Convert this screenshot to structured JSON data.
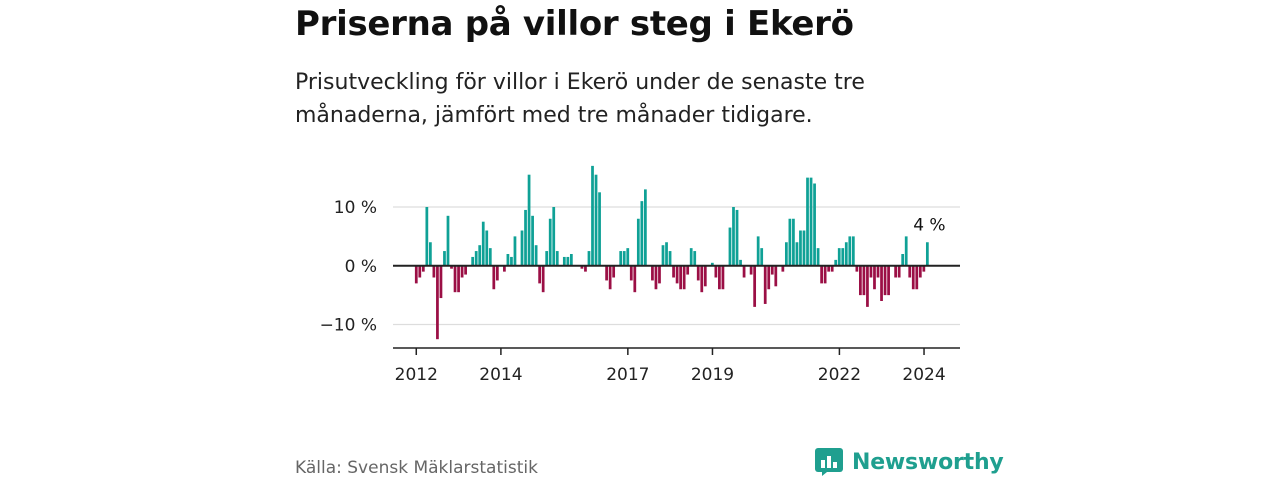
{
  "header": {
    "title": "Priserna på villor steg i Ekerö",
    "subtitle": "Prisutveckling för villor i Ekerö under de senaste tre månaderna, jämfört med tre månader tidigare."
  },
  "footer": {
    "source": "Källa: Svensk Mäklarstatistik",
    "brand": "Newsworthy"
  },
  "colors": {
    "positive": "#0fa196",
    "negative": "#9b0f45",
    "grid": "#dddddd",
    "zero": "#222222",
    "brand": "#1f9f8f"
  },
  "chart_data": {
    "type": "bar",
    "title": "Priserna på villor steg i Ekerö",
    "xlabel": "",
    "ylabel": "",
    "unit": "%",
    "ylim": [
      -14,
      18
    ],
    "yticks": [
      {
        "value": 10,
        "label": "10 %"
      },
      {
        "value": 0,
        "label": "0 %"
      },
      {
        "value": -10,
        "label": "−10 %"
      }
    ],
    "xticks": [
      {
        "value": 2012,
        "label": "2012"
      },
      {
        "value": 2014,
        "label": "2014"
      },
      {
        "value": 2017,
        "label": "2017"
      },
      {
        "value": 2019,
        "label": "2019"
      },
      {
        "value": 2022,
        "label": "2022"
      },
      {
        "value": 2024,
        "label": "2024"
      }
    ],
    "xlim": [
      2011.45,
      2024.85
    ],
    "annotation": "4 %",
    "x_start": 2012.0,
    "x_step": 0.0833,
    "values": [
      -3,
      -2,
      -1,
      10,
      4,
      -2,
      -12.5,
      -5.5,
      2.5,
      8.5,
      -0.5,
      -4.5,
      -4.5,
      -2,
      -1.5,
      0,
      1.5,
      2.5,
      3.5,
      7.5,
      6,
      3,
      -4,
      -2.5,
      0,
      -1,
      2,
      1.5,
      5,
      0,
      6,
      9.5,
      15.5,
      8.5,
      3.5,
      -3,
      -4.5,
      2.5,
      8,
      10,
      2.5,
      0,
      1.5,
      1.5,
      2,
      0,
      0,
      -0.5,
      -1,
      2.5,
      17,
      15.5,
      12.5,
      0,
      -2.5,
      -4,
      -2,
      0,
      2.5,
      2.5,
      3,
      -2.5,
      -4.5,
      8,
      11,
      13,
      0,
      -2.5,
      -4,
      -3,
      3.5,
      4,
      2.5,
      -2,
      -3,
      -4,
      -4,
      -1.5,
      3,
      2.5,
      -2.5,
      -4.5,
      -3.5,
      0,
      0.5,
      -2,
      -4,
      -4,
      0,
      6.5,
      10,
      9.5,
      1,
      -2,
      0,
      -1.5,
      -7,
      5,
      3,
      -6.5,
      -4,
      -1.5,
      -3.5,
      0,
      -1,
      4,
      8,
      8,
      4,
      6,
      6,
      15,
      15,
      14,
      3,
      -3,
      -3,
      -1,
      -1,
      1,
      3,
      3,
      4,
      5,
      5,
      -1,
      -5,
      -5,
      -7,
      -2,
      -4,
      -2,
      -6,
      -5,
      -5,
      0,
      -2,
      -2,
      2,
      5,
      -2,
      -4,
      -4,
      -2,
      -1,
      4
    ]
  }
}
